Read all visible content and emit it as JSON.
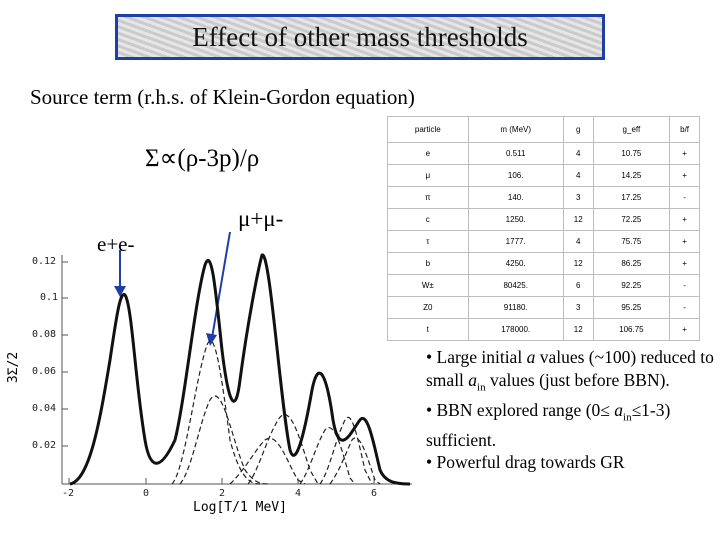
{
  "header": {
    "title": "Effect of other mass thresholds"
  },
  "subtitle": "Source term (r.h.s. of Klein-Gordon equation)",
  "formula": "Σ∝(ρ-3p)/ρ",
  "labels": {
    "mumu": "μ+μ-",
    "ee": "e+e-"
  },
  "plot": {
    "ytick_labels": [
      "0.12",
      "0.1",
      "0.08",
      "0.06",
      "0.04",
      "0.02"
    ],
    "xtick_labels": [
      "-2",
      "0",
      "2",
      "4",
      "6"
    ],
    "ylabel": "3Σ/2",
    "xlabel": "Log[T/1 MeV]"
  },
  "table": {
    "headers": [
      "particle",
      "m (MeV)",
      "g",
      "g_eff",
      "b/f"
    ],
    "rows": [
      [
        "e",
        "0.511",
        "4",
        "10.75",
        "+"
      ],
      [
        "μ",
        "106.",
        "4",
        "14.25",
        "+"
      ],
      [
        "π",
        "140.",
        "3",
        "17.25",
        "-"
      ],
      [
        "c",
        "1250.",
        "12",
        "72.25",
        "+"
      ],
      [
        "τ",
        "1777.",
        "4",
        "75.75",
        "+"
      ],
      [
        "b",
        "4250.",
        "12",
        "86.25",
        "+"
      ],
      [
        "W±",
        "80425.",
        "6",
        "92.25",
        "-"
      ],
      [
        "Z0",
        "91180.",
        "3",
        "95.25",
        "-"
      ],
      [
        "t",
        "178000.",
        "12",
        "106.75",
        "+"
      ]
    ]
  },
  "bullets": {
    "b1_a": "• Large initial ",
    "b1_var": "a",
    "b1_b": " values (~100) reduced to small ",
    "b1_var2": "a",
    "b1_sub": "in",
    "b1_c": " values (just before BBN).",
    "b2_a": "• BBN explored range (0≤ ",
    "b2_var": "a",
    "b2_sub": "in",
    "b2_b": "≤1-3) sufficient.",
    "b3": "• Powerful drag towards GR"
  }
}
